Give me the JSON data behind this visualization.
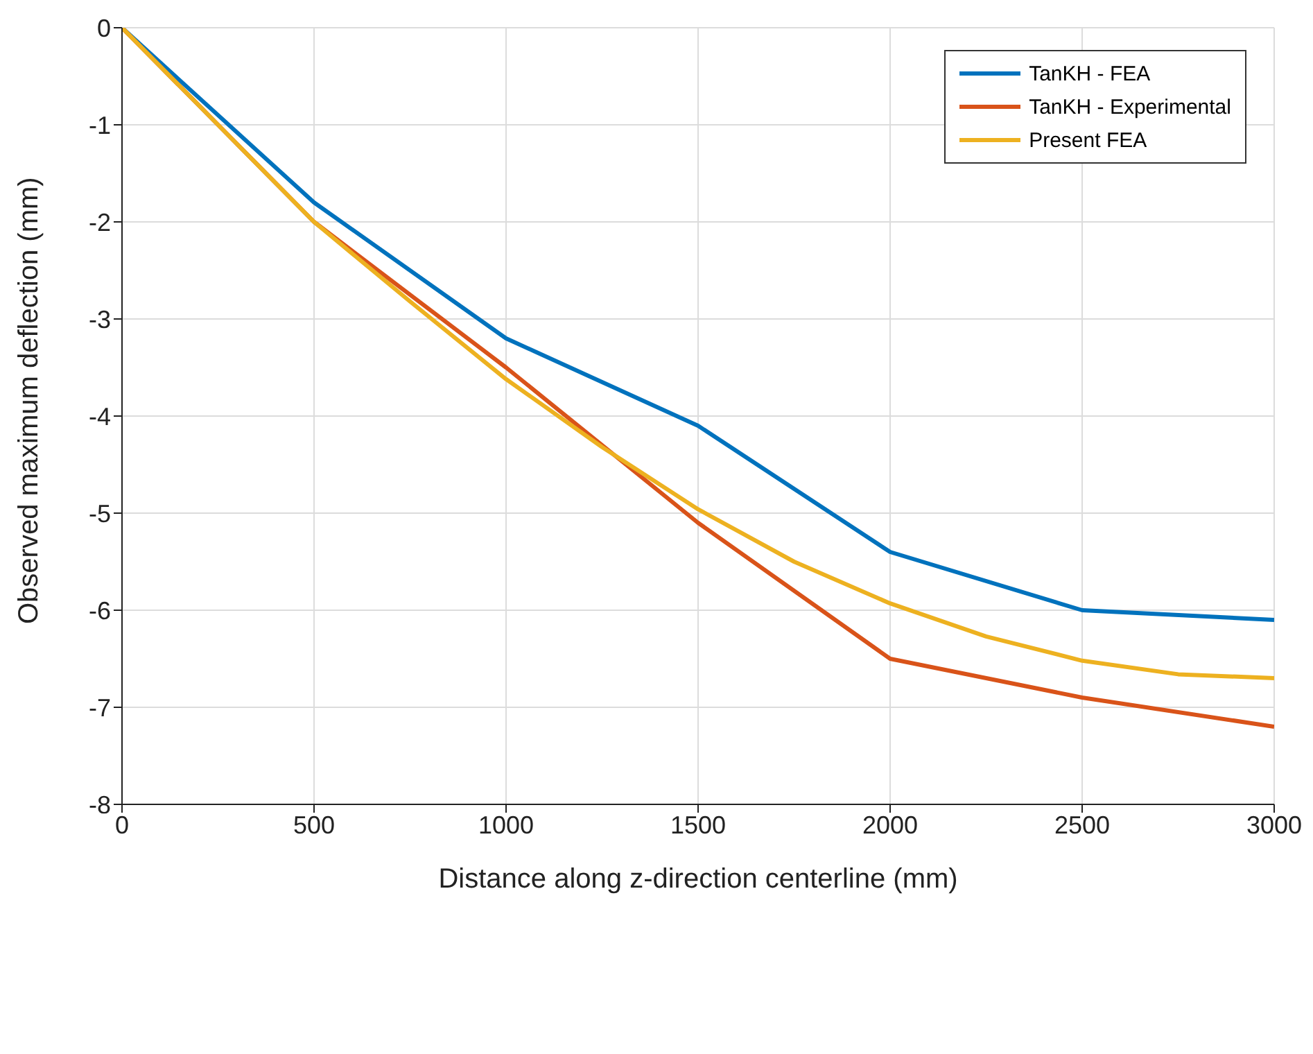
{
  "chart_data": {
    "type": "line",
    "xlabel": "Distance along z-direction centerline (mm)",
    "ylabel": "Observed maximum deflection (mm)",
    "xlim": [
      0,
      3000
    ],
    "xticks": [
      0,
      500,
      1000,
      1500,
      2000,
      2500,
      3000
    ],
    "ylim": [
      -8,
      0
    ],
    "yticks": [
      -8,
      -7,
      -6,
      -5,
      -4,
      -3,
      -2,
      -1,
      0
    ],
    "grid": true,
    "legend": "top right",
    "marker": "none",
    "line_style": "solid",
    "series": [
      {
        "name": "TanKH - FEA",
        "color": "#0072bd",
        "x": [
          0,
          500,
          1000,
          1500,
          2000,
          2500,
          3000
        ],
        "values": [
          0,
          -1.8,
          -3.2,
          -4.1,
          -5.4,
          -6.0,
          -6.1
        ]
      },
      {
        "name": "TanKH - Experimental",
        "color": "#d95319",
        "x": [
          0,
          500,
          1000,
          1500,
          2000,
          2500,
          3000
        ],
        "values": [
          0,
          -2.0,
          -3.5,
          -5.1,
          -6.5,
          -6.9,
          -7.2
        ]
      },
      {
        "name": "Present FEA",
        "color": "#edb120",
        "x": [
          0,
          250,
          500,
          750,
          1000,
          1250,
          1500,
          1750,
          2000,
          2250,
          2500,
          2750,
          3000
        ],
        "values": [
          0,
          -1.0,
          -2.0,
          -2.82,
          -3.62,
          -4.32,
          -4.96,
          -5.5,
          -5.93,
          -6.27,
          -6.52,
          -6.66,
          -6.7
        ]
      }
    ]
  }
}
